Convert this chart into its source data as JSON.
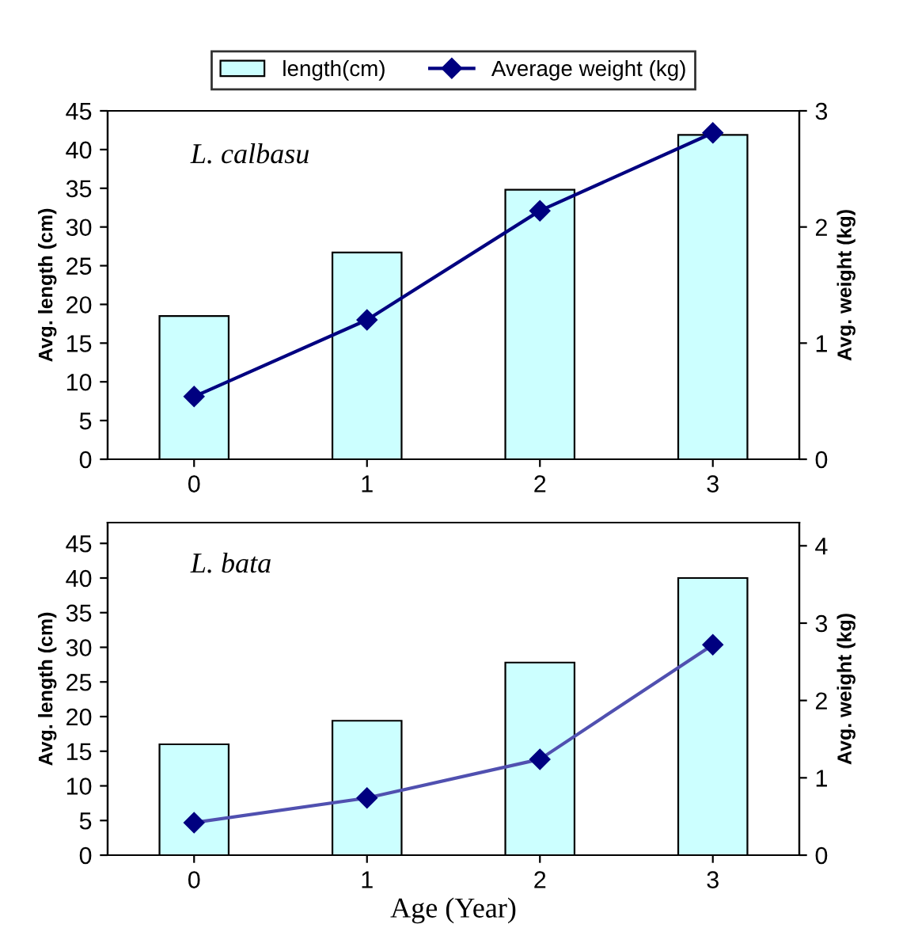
{
  "chart_data": [
    {
      "type": "bar",
      "categories": [
        "0",
        "1",
        "2",
        "3"
      ],
      "ylabel": "Avg. length (cm)",
      "y2label": "Avg. weight (kg)",
      "annotations": [
        "L. calbasu"
      ],
      "ylim": [
        0,
        45
      ],
      "yticks": [
        0,
        5,
        10,
        15,
        20,
        25,
        30,
        35,
        40,
        45
      ],
      "y2lim": [
        0,
        3
      ],
      "y2ticks": [
        0,
        1,
        2,
        3
      ],
      "legend": "top",
      "grid": false,
      "marker": "diamond",
      "line_style": "solid",
      "series": [
        {
          "name": "length(cm)",
          "color": "#ccffff",
          "values": [
            18.5,
            26.7,
            34.8,
            41.9
          ]
        },
        {
          "name": "Average weight (kg)",
          "type": "line",
          "axis": "y2",
          "color": "#000080",
          "values": [
            0.54,
            1.2,
            2.14,
            2.81
          ]
        }
      ]
    },
    {
      "type": "bar",
      "categories": [
        "0",
        "1",
        "2",
        "3"
      ],
      "xlabel": "Age (Year)",
      "ylabel": "Avg. length (cm)",
      "y2label": "Avg. weight (kg)",
      "annotations": [
        "L. bata"
      ],
      "ylim": [
        0,
        48
      ],
      "yticks": [
        0,
        5,
        10,
        15,
        20,
        25,
        30,
        35,
        40,
        45
      ],
      "y2lim": [
        0,
        4.3
      ],
      "y2ticks": [
        0,
        1,
        2,
        3,
        4
      ],
      "grid": false,
      "marker": "diamond",
      "line_style": "solid",
      "series": [
        {
          "color": "#ccffff",
          "values": [
            16,
            19.4,
            27.8,
            40
          ]
        },
        {
          "type": "line",
          "axis": "y2",
          "color": "#5050b0",
          "values": [
            0.42,
            0.74,
            1.24,
            2.72
          ]
        }
      ]
    }
  ]
}
